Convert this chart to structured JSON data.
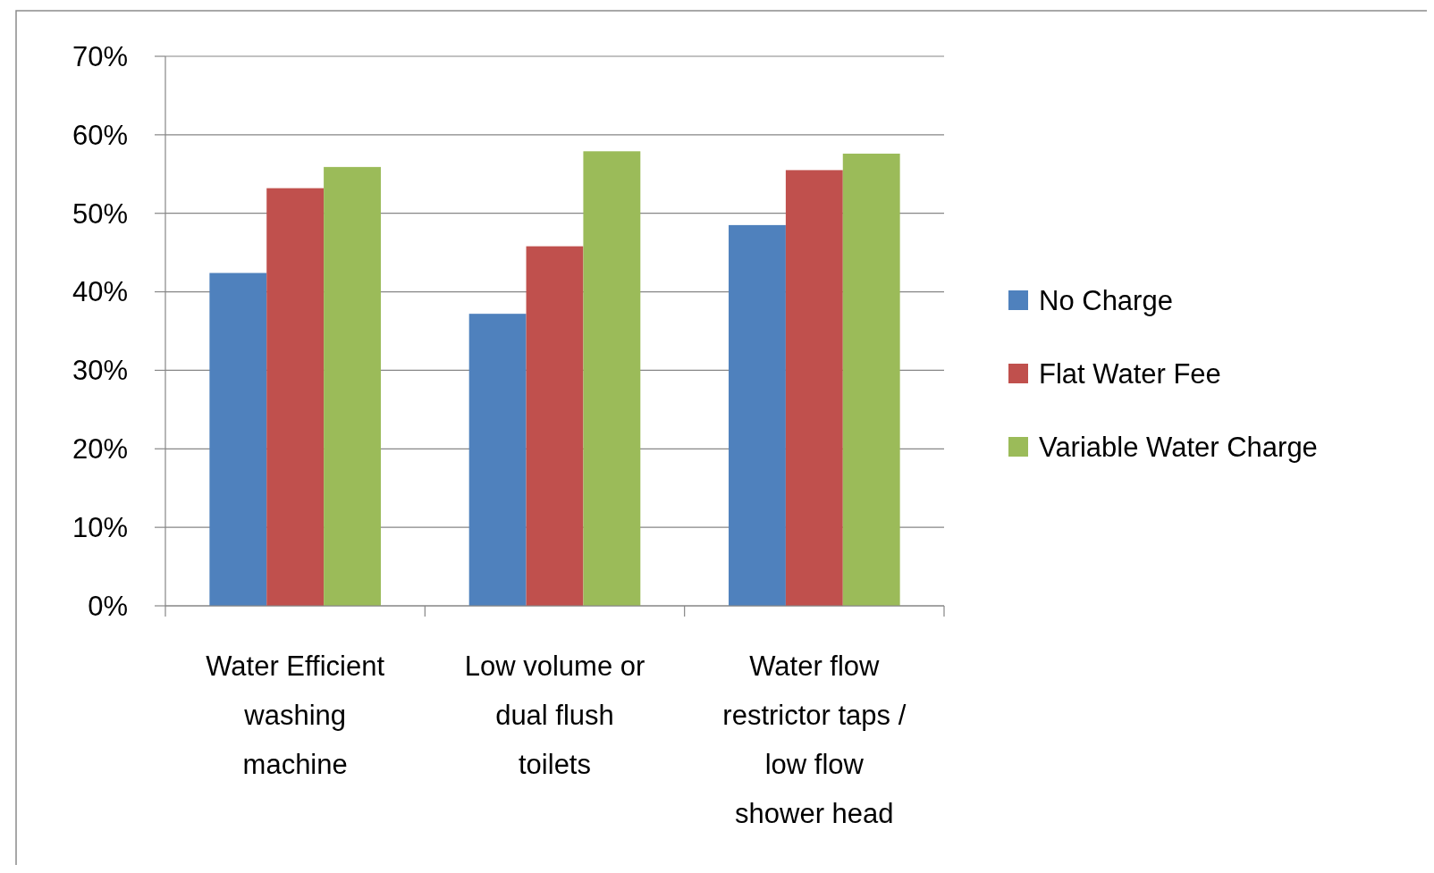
{
  "chart_data": {
    "type": "bar",
    "categories": [
      "Water Efficient washing machine",
      "Low volume or dual flush toilets",
      "Water flow restrictor taps / low flow shower head"
    ],
    "series": [
      {
        "name": "No Charge",
        "color": "#4f81bd",
        "values": [
          0.424,
          0.372,
          0.485
        ]
      },
      {
        "name": "Flat Water Fee",
        "color": "#c0504d",
        "values": [
          0.532,
          0.458,
          0.555
        ]
      },
      {
        "name": "Variable Water Charge",
        "color": "#9bbb59",
        "values": [
          0.559,
          0.579,
          0.576
        ]
      }
    ],
    "ylim": [
      0,
      0.7
    ],
    "yticks": [
      {
        "value": 0,
        "label": "0%"
      },
      {
        "value": 0.1,
        "label": "10%"
      },
      {
        "value": 0.2,
        "label": "20%"
      },
      {
        "value": 0.3,
        "label": "30%"
      },
      {
        "value": 0.4,
        "label": "40%"
      },
      {
        "value": 0.5,
        "label": "50%"
      },
      {
        "value": 0.6,
        "label": "60%"
      },
      {
        "value": 0.7,
        "label": "70%"
      }
    ],
    "grid": "y",
    "legend": "right"
  }
}
